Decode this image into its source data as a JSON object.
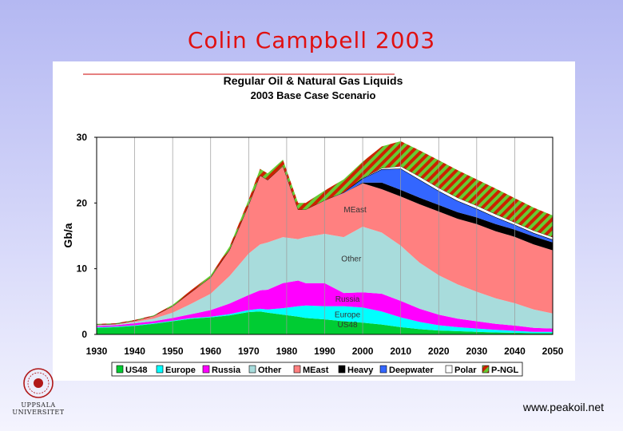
{
  "slide": {
    "title": "Colin Campbell 2003",
    "source_url": "www.peakoil.net",
    "logo_line1": "UPPSALA",
    "logo_line2": "UNIVERSITET"
  },
  "chart_data": {
    "type": "area",
    "stacked": true,
    "title": "Regular Oil & Natural Gas Liquids",
    "subtitle": "2003 Base Case Scenario",
    "ylabel": "Gb/a",
    "xlabel": "",
    "xlim": [
      1930,
      2050
    ],
    "ylim": [
      0,
      30
    ],
    "xticks": [
      "1930",
      "1940",
      "1950",
      "1960",
      "1970",
      "1980",
      "1990",
      "2000",
      "2010",
      "2020",
      "2030",
      "2040",
      "2050"
    ],
    "yticks": [
      "0",
      "10",
      "20",
      "30"
    ],
    "grid": "vertical",
    "x": [
      1930,
      1935,
      1940,
      1945,
      1950,
      1955,
      1960,
      1965,
      1970,
      1973,
      1975,
      1979,
      1983,
      1985,
      1990,
      1995,
      2000,
      2005,
      2010,
      2015,
      2020,
      2025,
      2030,
      2035,
      2040,
      2045,
      2050
    ],
    "series": [
      {
        "name": "US48",
        "color": "#00cc33",
        "values": [
          1.0,
          1.1,
          1.3,
          1.6,
          2.0,
          2.4,
          2.6,
          2.9,
          3.4,
          3.5,
          3.3,
          3.0,
          2.7,
          2.5,
          2.3,
          2.0,
          1.8,
          1.5,
          1.1,
          0.8,
          0.6,
          0.5,
          0.4,
          0.3,
          0.25,
          0.2,
          0.2
        ]
      },
      {
        "name": "Europe",
        "color": "#00ffff",
        "values": [
          0.1,
          0.1,
          0.1,
          0.1,
          0.1,
          0.1,
          0.1,
          0.2,
          0.3,
          0.4,
          0.5,
          1.0,
          1.6,
          1.9,
          2.0,
          2.3,
          2.3,
          2.0,
          1.5,
          1.1,
          0.8,
          0.6,
          0.5,
          0.4,
          0.3,
          0.2,
          0.2
        ]
      },
      {
        "name": "Russia",
        "color": "#ff00ff",
        "values": [
          0.2,
          0.2,
          0.3,
          0.3,
          0.4,
          0.6,
          1.0,
          1.6,
          2.3,
          2.8,
          3.0,
          3.8,
          3.9,
          3.4,
          3.5,
          2.0,
          2.3,
          2.7,
          2.5,
          2.0,
          1.6,
          1.3,
          1.1,
          0.9,
          0.8,
          0.6,
          0.5
        ]
      },
      {
        "name": "Other",
        "color": "#a8dcdc",
        "values": [
          0.1,
          0.1,
          0.2,
          0.4,
          0.8,
          1.6,
          2.5,
          4.2,
          6.3,
          7.0,
          7.2,
          7.0,
          6.3,
          7.0,
          7.5,
          8.5,
          10.0,
          9.3,
          8.4,
          7.0,
          6.0,
          5.2,
          4.5,
          3.9,
          3.4,
          2.8,
          2.3
        ]
      },
      {
        "name": "MEast",
        "color": "#ff8080",
        "values": [
          0.1,
          0.1,
          0.2,
          0.4,
          1.0,
          1.8,
          2.5,
          4.0,
          7.4,
          10.5,
          9.5,
          10.8,
          4.5,
          4.2,
          5.1,
          6.7,
          6.6,
          6.6,
          7.5,
          8.9,
          9.7,
          10.0,
          10.3,
          10.2,
          10.1,
          9.9,
          9.6
        ]
      },
      {
        "name": "Heavy",
        "color": "#000000",
        "values": [
          0,
          0,
          0,
          0,
          0,
          0,
          0,
          0,
          0,
          0,
          0,
          0,
          0,
          0,
          0,
          0,
          0.1,
          1.0,
          1.0,
          1.0,
          1.0,
          1.0,
          1.0,
          1.1,
          1.1,
          1.2,
          1.2
        ]
      },
      {
        "name": "Deepwater",
        "color": "#3366ff",
        "values": [
          0,
          0,
          0,
          0,
          0,
          0,
          0,
          0,
          0,
          0,
          0,
          0,
          0,
          0,
          0,
          0.1,
          0.6,
          2.0,
          3.2,
          2.7,
          2.1,
          1.7,
          1.3,
          1.0,
          0.7,
          0.5,
          0.4
        ]
      },
      {
        "name": "Polar",
        "color": "#ffffff",
        "values": [
          0,
          0,
          0,
          0,
          0,
          0,
          0,
          0,
          0,
          0,
          0,
          0,
          0,
          0,
          0,
          0,
          0.1,
          0.2,
          0.4,
          0.5,
          0.5,
          0.5,
          0.5,
          0.5,
          0.4,
          0.4,
          0.4
        ]
      },
      {
        "name": "P-NGL",
        "color": "#cc2200",
        "pattern": "hatch",
        "values": [
          0.1,
          0.1,
          0.1,
          0.1,
          0.2,
          0.3,
          0.3,
          0.5,
          0.8,
          1.0,
          1.0,
          1.0,
          1.0,
          1.0,
          1.5,
          2.0,
          2.5,
          3.3,
          3.8,
          4.0,
          4.2,
          4.2,
          4.0,
          3.9,
          3.7,
          3.5,
          3.3
        ]
      }
    ],
    "annotations": [
      "MEast",
      "Other",
      "Russia",
      "Europe",
      "US48"
    ],
    "legend_position": "bottom"
  }
}
